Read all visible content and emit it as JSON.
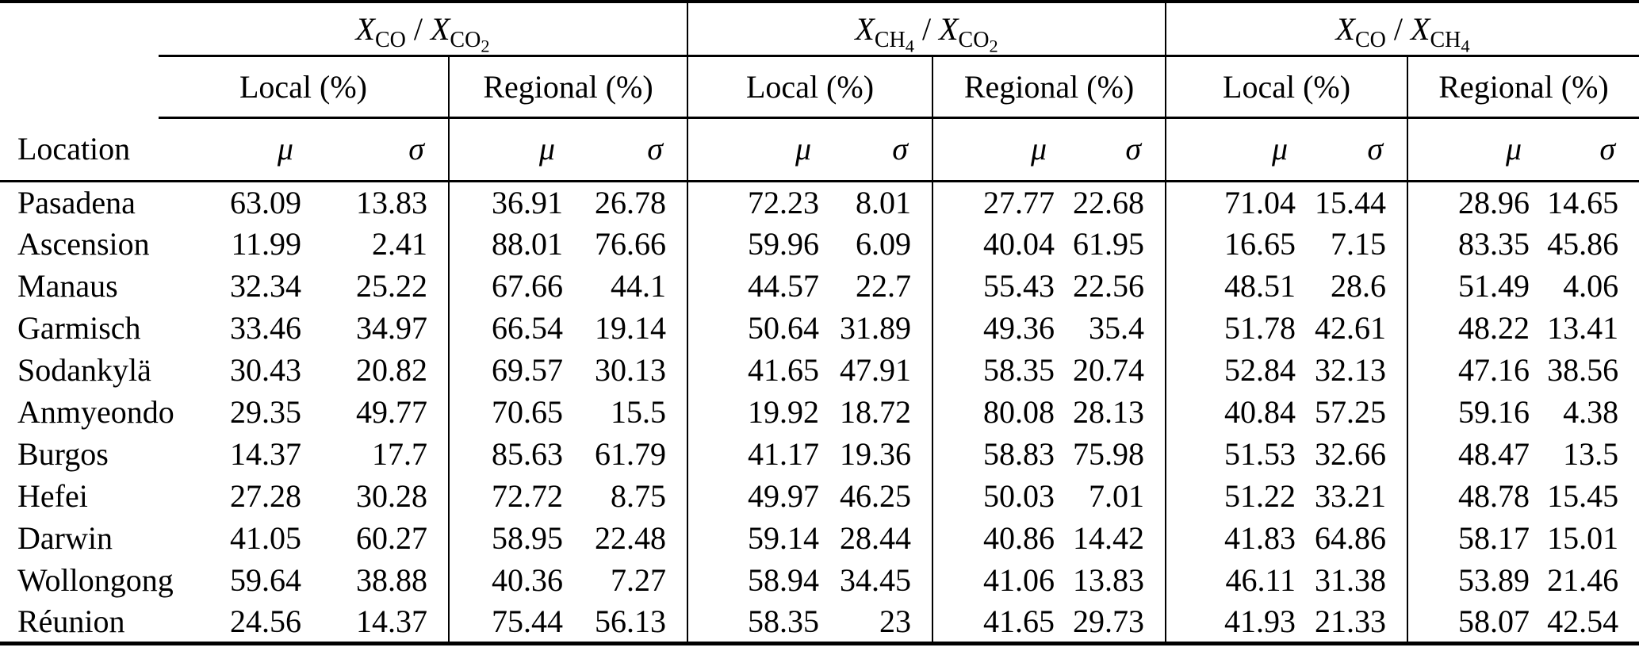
{
  "table": {
    "location_header": "Location",
    "col_headers": {
      "mu": "μ",
      "sigma": "σ"
    },
    "groups": [
      {
        "ratio": {
          "base1": "X",
          "sub1": "CO",
          "subdigit1": "",
          "sep": "/",
          "base2": "X",
          "sub2": "CO",
          "subdigit2": "2"
        },
        "local_label": "Local (%)",
        "regional_label": "Regional (%)"
      },
      {
        "ratio": {
          "base1": "X",
          "sub1": "CH",
          "subdigit1": "4",
          "sep": "/",
          "base2": "X",
          "sub2": "CO",
          "subdigit2": "2"
        },
        "local_label": "Local (%)",
        "regional_label": "Regional (%)"
      },
      {
        "ratio": {
          "base1": "X",
          "sub1": "CO",
          "subdigit1": "",
          "sep": "/",
          "base2": "X",
          "sub2": "CH",
          "subdigit2": "4"
        },
        "local_label": "Local (%)",
        "regional_label": "Regional (%)"
      }
    ],
    "rows": [
      {
        "location": "Pasadena",
        "values": [
          "63.09",
          "13.83",
          "36.91",
          "26.78",
          "72.23",
          "8.01",
          "27.77",
          "22.68",
          "71.04",
          "15.44",
          "28.96",
          "14.65"
        ]
      },
      {
        "location": "Ascension",
        "values": [
          "11.99",
          "2.41",
          "88.01",
          "76.66",
          "59.96",
          "6.09",
          "40.04",
          "61.95",
          "16.65",
          "7.15",
          "83.35",
          "45.86"
        ]
      },
      {
        "location": "Manaus",
        "values": [
          "32.34",
          "25.22",
          "67.66",
          "44.1",
          "44.57",
          "22.7",
          "55.43",
          "22.56",
          "48.51",
          "28.6",
          "51.49",
          "4.06"
        ]
      },
      {
        "location": "Garmisch",
        "values": [
          "33.46",
          "34.97",
          "66.54",
          "19.14",
          "50.64",
          "31.89",
          "49.36",
          "35.4",
          "51.78",
          "42.61",
          "48.22",
          "13.41"
        ]
      },
      {
        "location": "Sodankylä",
        "values": [
          "30.43",
          "20.82",
          "69.57",
          "30.13",
          "41.65",
          "47.91",
          "58.35",
          "20.74",
          "52.84",
          "32.13",
          "47.16",
          "38.56"
        ]
      },
      {
        "location": "Anmyeondo",
        "values": [
          "29.35",
          "49.77",
          "70.65",
          "15.5",
          "19.92",
          "18.72",
          "80.08",
          "28.13",
          "40.84",
          "57.25",
          "59.16",
          "4.38"
        ]
      },
      {
        "location": "Burgos",
        "values": [
          "14.37",
          "17.7",
          "85.63",
          "61.79",
          "41.17",
          "19.36",
          "58.83",
          "75.98",
          "51.53",
          "32.66",
          "48.47",
          "13.5"
        ]
      },
      {
        "location": "Hefei",
        "values": [
          "27.28",
          "30.28",
          "72.72",
          "8.75",
          "49.97",
          "46.25",
          "50.03",
          "7.01",
          "51.22",
          "33.21",
          "48.78",
          "15.45"
        ]
      },
      {
        "location": "Darwin",
        "values": [
          "41.05",
          "60.27",
          "58.95",
          "22.48",
          "59.14",
          "28.44",
          "40.86",
          "14.42",
          "41.83",
          "64.86",
          "58.17",
          "15.01"
        ]
      },
      {
        "location": "Wollongong",
        "values": [
          "59.64",
          "38.88",
          "40.36",
          "7.27",
          "58.94",
          "34.45",
          "41.06",
          "13.83",
          "46.11",
          "31.38",
          "53.89",
          "21.46"
        ]
      },
      {
        "location": "Réunion",
        "values": [
          "24.56",
          "14.37",
          "75.44",
          "56.13",
          "58.35",
          "23",
          "41.65",
          "29.73",
          "41.93",
          "21.33",
          "58.07",
          "42.54"
        ]
      }
    ]
  }
}
